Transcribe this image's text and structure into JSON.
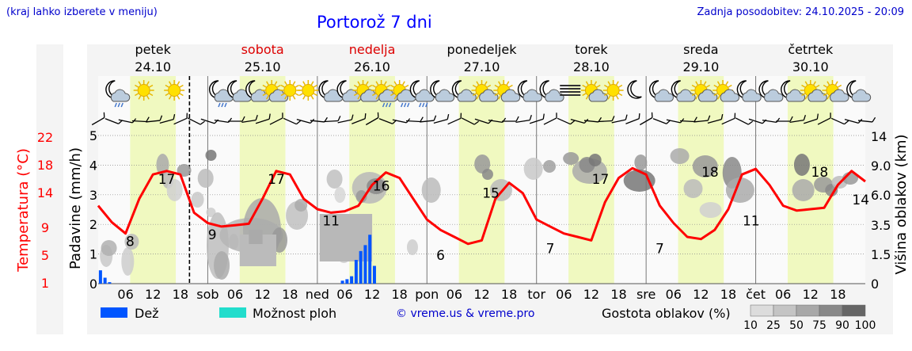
{
  "header": {
    "hint": "(kraj lahko izberete v meniju)",
    "title": "Portorož 7 dni",
    "updated": "Zadnja posodobitev: 24.10.2025 - 20:09"
  },
  "days": [
    {
      "name": "petek",
      "date": "24.10",
      "weekend": false
    },
    {
      "name": "sobota",
      "date": "25.10",
      "weekend": true
    },
    {
      "name": "nedelja",
      "date": "26.10",
      "weekend": true
    },
    {
      "name": "ponedeljek",
      "date": "27.10",
      "weekend": false
    },
    {
      "name": "torek",
      "date": "28.10",
      "weekend": false
    },
    {
      "name": "sreda",
      "date": "29.10",
      "weekend": false
    },
    {
      "name": "četrtek",
      "date": "30.10",
      "weekend": false
    }
  ],
  "weather_icons": [
    [
      "moon-rain",
      "sun",
      "sun"
    ],
    [
      "moon-rain",
      "moon-cloud",
      "moon-cloud",
      "sun-cloud",
      "sun",
      "sun"
    ],
    [
      "moon-cloud",
      "moon-cloud",
      "sun-cloud",
      "sun-rain",
      "sun-rain",
      "moon-rain"
    ],
    [
      "moon-cloud",
      "moon-cloud",
      "sun-cloud",
      "sun-cloud",
      "moon-cloud"
    ],
    [
      "moon-cloud",
      "fog",
      "sun-cloud",
      "sun",
      "moon"
    ],
    [
      "moon-cloud",
      "moon-cloud",
      "sun-cloud",
      "sun-cloud",
      "moon-cloud"
    ],
    [
      "moon-cloud",
      "moon-cloud",
      "sun-cloud",
      "sun-cloud",
      "moon-cloud"
    ]
  ],
  "chart_data": {
    "type": "line",
    "series": [
      {
        "name": "Temperatura (°C)",
        "color": "#ff0000",
        "x": [
          0,
          3,
          6,
          9,
          12,
          15,
          18,
          21,
          24,
          27,
          30,
          33,
          36,
          39,
          42,
          45,
          48,
          51,
          54,
          57,
          60,
          63,
          66,
          69,
          72,
          75,
          78,
          81,
          84,
          87,
          90,
          93,
          96,
          99,
          102,
          105,
          108,
          111,
          114,
          117,
          120,
          123,
          126,
          129,
          132,
          135,
          138,
          141,
          144,
          147,
          150,
          153,
          156,
          159,
          162,
          165,
          168
        ],
        "y": [
          12,
          9.6,
          8,
          13,
          16.5,
          17,
          16.5,
          11,
          9.5,
          9,
          9.2,
          9.4,
          13,
          17,
          16.5,
          13,
          11.5,
          11,
          11.2,
          12,
          15,
          16.8,
          16,
          13,
          10,
          8.5,
          7.5,
          6.5,
          7,
          13,
          15.3,
          13.8,
          10,
          9,
          8,
          7.5,
          7,
          12.5,
          16,
          17.4,
          16.5,
          12,
          9.5,
          7.5,
          7.2,
          8.5,
          11.5,
          16.5,
          17.3,
          15,
          12,
          11.3,
          11.5,
          11.7,
          15,
          17,
          15.5
        ]
      },
      {
        "name": "Dež",
        "color": "#0055ff",
        "x": [
          0.5,
          1.5,
          2.5,
          53.5,
          54.5,
          55.5,
          56.5,
          57.5,
          58.5,
          59.5,
          60.5
        ],
        "y": [
          0.45,
          0.2,
          0.05,
          0.1,
          0.15,
          0.25,
          0.8,
          1.1,
          1.3,
          1.65,
          0.6
        ]
      }
    ],
    "x_hours": [
      6,
      12,
      18,
      30,
      36,
      42,
      54,
      60,
      66,
      78,
      84,
      90,
      102,
      108,
      114,
      126,
      132,
      138,
      150,
      156,
      162
    ],
    "x_tick_labels": [
      "06",
      "12",
      "18",
      "sob",
      "06",
      "12",
      "18",
      "ned",
      "06",
      "12",
      "18",
      "pon",
      "06",
      "12",
      "18",
      "tor",
      "06",
      "12",
      "18",
      "sre",
      "06",
      "12",
      "18",
      "čet",
      "06",
      "12",
      "18"
    ],
    "left_ticks_temp": [
      "1",
      "5",
      "9",
      "14",
      "18",
      "22"
    ],
    "left_ticks_rain": [
      "0",
      "1",
      "2",
      "3",
      "4",
      "5"
    ],
    "right_ticks_cloud": [
      "0",
      "1.5",
      "3.5",
      "6.0",
      "9.0",
      "14"
    ],
    "ylabel_temp": "Temperatura (°C)",
    "ylabel_rain": "Padavine (mm/h)",
    "ylabel_cloud": "Višina oblakov (km)",
    "temp_labels": [
      {
        "x": 7,
        "y": 8,
        "text": "8"
      },
      {
        "x": 15,
        "y": 17,
        "text": "17"
      },
      {
        "x": 25,
        "y": 9,
        "text": "9"
      },
      {
        "x": 39,
        "y": 17,
        "text": "17"
      },
      {
        "x": 51,
        "y": 11,
        "text": "11"
      },
      {
        "x": 62,
        "y": 16,
        "text": "16"
      },
      {
        "x": 75,
        "y": 6,
        "text": "6"
      },
      {
        "x": 86,
        "y": 15,
        "text": "15"
      },
      {
        "x": 99,
        "y": 7,
        "text": "7"
      },
      {
        "x": 110,
        "y": 17,
        "text": "17"
      },
      {
        "x": 123,
        "y": 7,
        "text": "7"
      },
      {
        "x": 134,
        "y": 18,
        "text": "18"
      },
      {
        "x": 143,
        "y": 11,
        "text": "11"
      },
      {
        "x": 158,
        "y": 18,
        "text": "18"
      },
      {
        "x": 167,
        "y": 14,
        "text": "14"
      }
    ],
    "now_hour": 20,
    "legend": {
      "rain": "Dež",
      "storm": "Možnost ploh",
      "density": "Gostota oblakov (%)",
      "density_levels": [
        "10",
        "25",
        "50",
        "75",
        "90",
        "100"
      ]
    },
    "colors": {
      "daylight": "#f0f9c0",
      "rain": "#0055ff",
      "storm": "#22ddcc",
      "temp": "#ff0000"
    }
  },
  "footer": {
    "copyright": "© vreme.us & vreme.pro"
  }
}
